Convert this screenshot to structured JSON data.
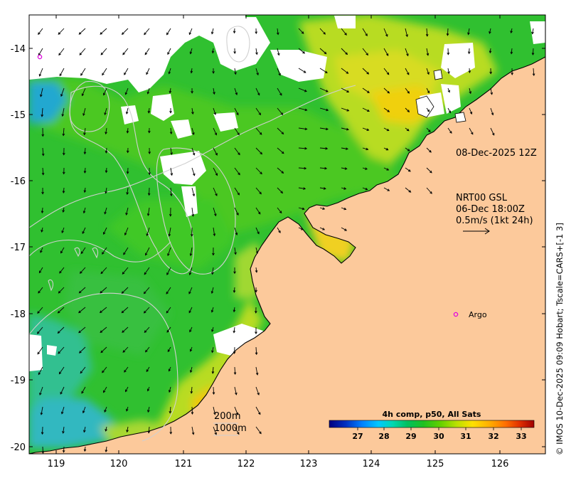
{
  "map": {
    "lat_labels": [
      "-14",
      "-15",
      "-16",
      "-17",
      "-18",
      "-19",
      "-20"
    ],
    "lon_labels": [
      "119",
      "120",
      "121",
      "122",
      "123",
      "124",
      "125",
      "126"
    ],
    "colors": {
      "land": "#fcc99b",
      "coast": "#000000",
      "contour": "#c8c8c8",
      "cloud": "#ffffff"
    }
  },
  "annotations": {
    "timestamp": "08-Dec-2025 12Z",
    "current_source": "NRT00 GSL",
    "current_time": "06-Dec 18:00Z",
    "vector_scale": "0.5m/s (1kt 24h)",
    "argo_label": "Argo",
    "contour_200": "200m",
    "contour_1000": "1000m"
  },
  "colorbar": {
    "title": "4h comp, p50, All Sats",
    "ticks": [
      "27",
      "28",
      "29",
      "30",
      "31",
      "32",
      "33"
    ],
    "colors": [
      "#000080",
      "#0030c0",
      "#0080ff",
      "#00c8ff",
      "#00d8b0",
      "#00c060",
      "#20c020",
      "#60d000",
      "#b8e000",
      "#ffe000",
      "#ffb000",
      "#ff7000",
      "#e03000",
      "#a00000"
    ]
  },
  "credit": "© IMOS 10-Dec-2025 09:09 Hobart; Tscale=CARS+[-1 3]"
}
